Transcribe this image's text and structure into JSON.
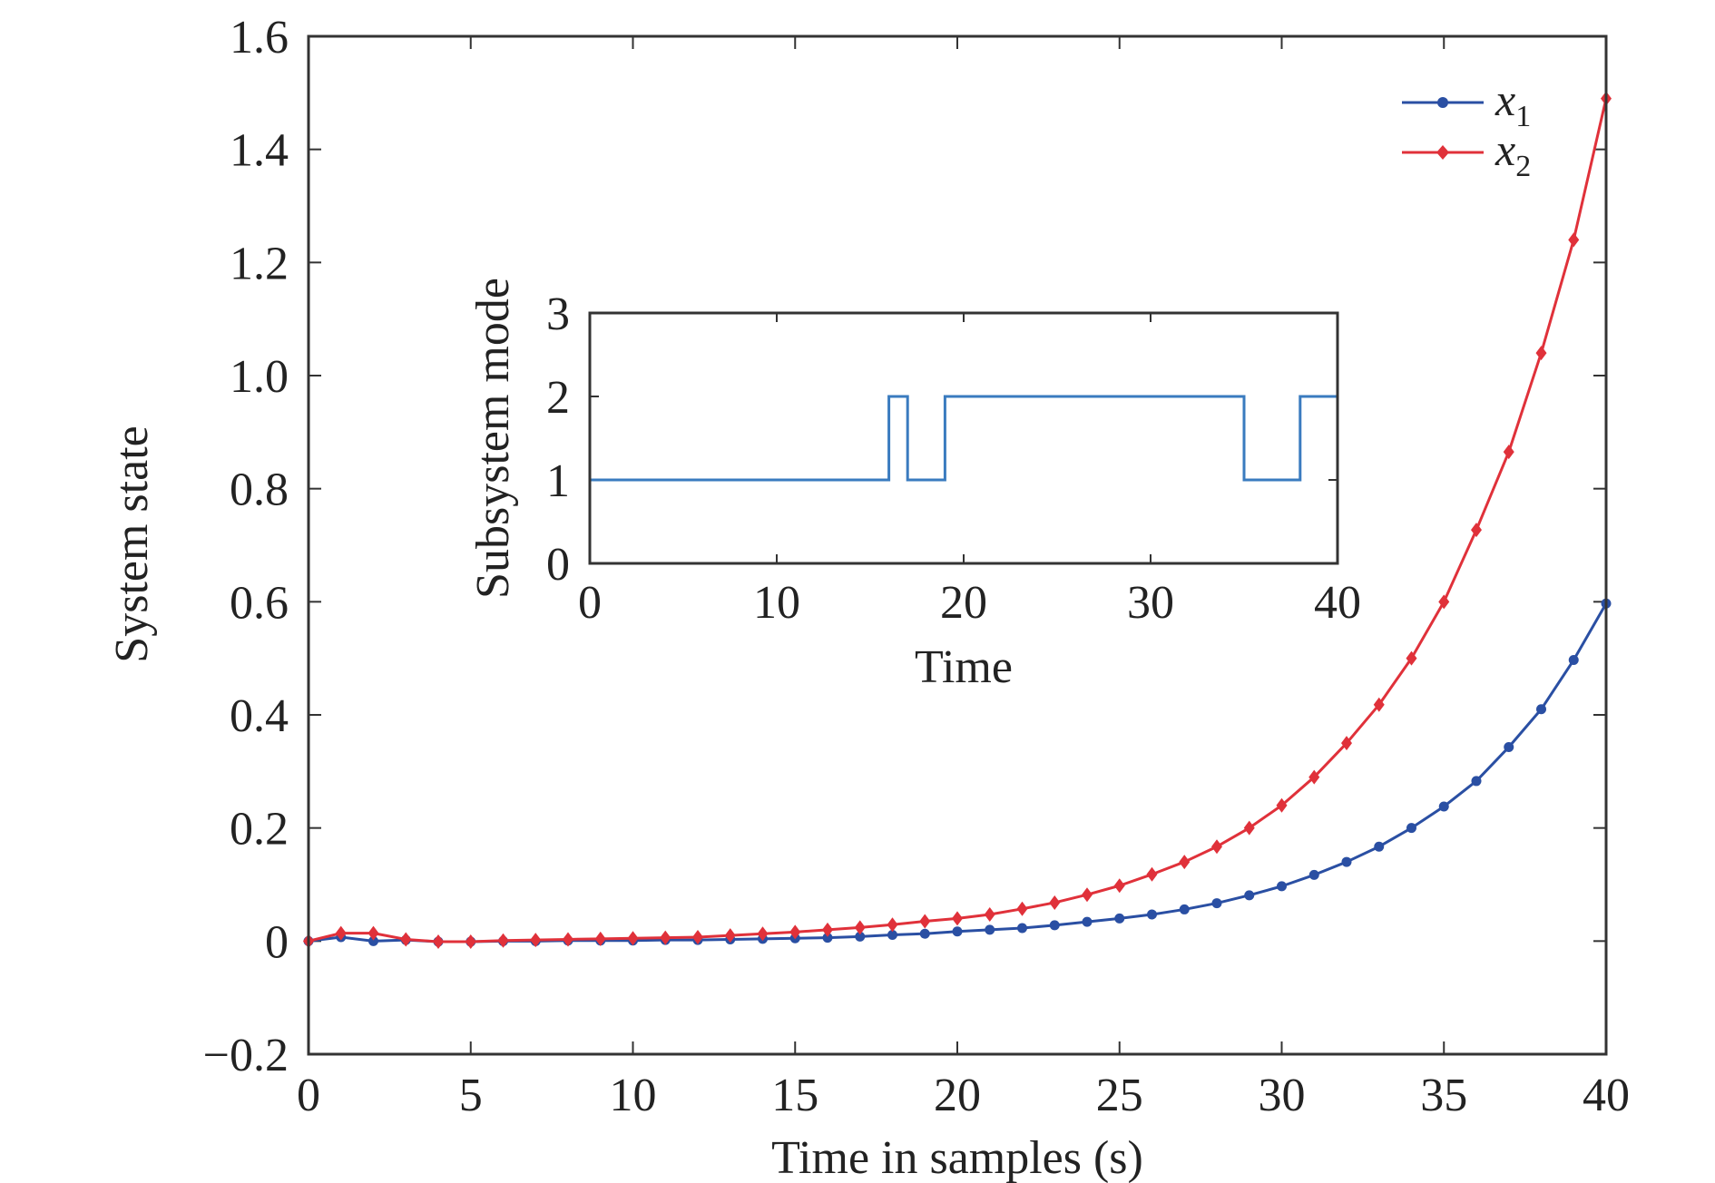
{
  "chart_data": [
    {
      "type": "line",
      "xlabel": "Time in samples (s)",
      "ylabel": "System state",
      "xlim": [
        0,
        40
      ],
      "ylim": [
        -0.2,
        1.6
      ],
      "x_ticks": [
        0,
        5,
        10,
        15,
        20,
        25,
        30,
        35,
        40
      ],
      "y_ticks": [
        -0.2,
        0,
        0.2,
        0.4,
        0.6,
        0.8,
        1.0,
        1.2,
        1.4,
        1.6
      ],
      "y_tick_labels": [
        "−0.2",
        "0",
        "0.2",
        "0.4",
        "0.6",
        "0.8",
        "1.0",
        "1.2",
        "1.4",
        "1.6"
      ],
      "grid": false,
      "legend_position": "top-right",
      "x": [
        0,
        1,
        2,
        3,
        4,
        5,
        6,
        7,
        8,
        9,
        10,
        11,
        12,
        13,
        14,
        15,
        16,
        17,
        18,
        19,
        20,
        21,
        22,
        23,
        24,
        25,
        26,
        27,
        28,
        29,
        30,
        31,
        32,
        33,
        34,
        35,
        36,
        37,
        38,
        39,
        40
      ],
      "series": [
        {
          "name": "x",
          "subscript": "1",
          "color": "#2a4fa3",
          "marker": "circle",
          "values": [
            0,
            0.007,
            0,
            0.002,
            -0.001,
            -0.001,
            0,
            0,
            0.001,
            0.001,
            0.001,
            0.002,
            0.002,
            0.003,
            0.004,
            0.005,
            0.006,
            0.008,
            0.011,
            0.013,
            0.017,
            0.02,
            0.023,
            0.028,
            0.034,
            0.04,
            0.047,
            0.056,
            0.067,
            0.081,
            0.097,
            0.117,
            0.14,
            0.167,
            0.2,
            0.238,
            0.283,
            0.343,
            0.41,
            0.497,
            0.597
          ]
        },
        {
          "name": "x",
          "subscript": "2",
          "color": "#e0313a",
          "marker": "diamond",
          "values": [
            0,
            0.014,
            0.014,
            0.003,
            -0.001,
            -0.001,
            0.001,
            0.002,
            0.003,
            0.004,
            0.005,
            0.006,
            0.007,
            0.01,
            0.013,
            0.016,
            0.02,
            0.024,
            0.029,
            0.035,
            0.04,
            0.047,
            0.057,
            0.068,
            0.082,
            0.098,
            0.118,
            0.14,
            0.167,
            0.2,
            0.24,
            0.29,
            0.35,
            0.418,
            0.5,
            0.6,
            0.727,
            0.865,
            1.04,
            1.24,
            1.49
          ]
        }
      ]
    },
    {
      "type": "line",
      "xlabel": "Time",
      "ylabel": "Subsystem mode",
      "xlim": [
        0,
        40
      ],
      "ylim": [
        0,
        3
      ],
      "x_ticks": [
        0,
        10,
        20,
        30,
        40
      ],
      "y_ticks": [
        0,
        1,
        2,
        3
      ],
      "grid": false,
      "series": [
        {
          "color": "#3a7bbf",
          "step": true,
          "x": [
            0,
            16,
            17,
            19,
            35,
            38,
            40
          ],
          "values": [
            1,
            2,
            1,
            2,
            1,
            2,
            2
          ]
        }
      ]
    }
  ]
}
